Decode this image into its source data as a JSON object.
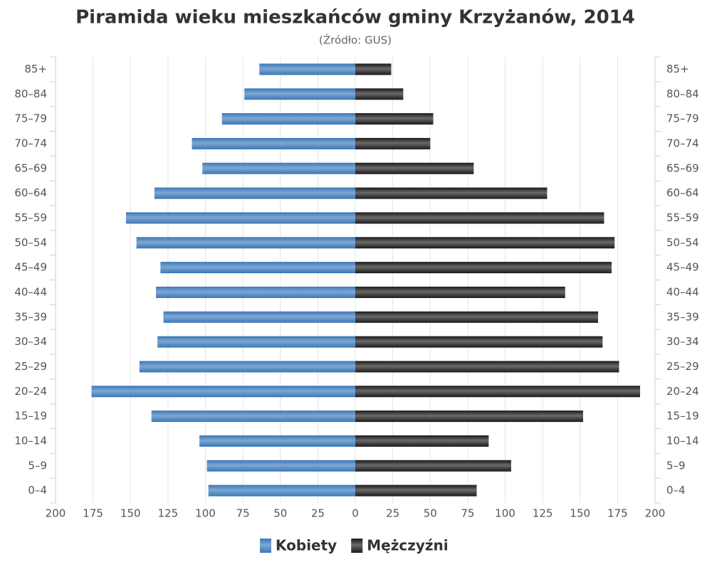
{
  "chart_data": {
    "type": "pyramid",
    "title": "Piramida wieku mieszkańców gminy Krzyżanów, 2014",
    "subtitle": "(Źródło: GUS)",
    "categories": [
      "85+",
      "80–84",
      "75–79",
      "70–74",
      "65–69",
      "60–64",
      "55–59",
      "50–54",
      "45–49",
      "40–44",
      "35–39",
      "30–34",
      "25–29",
      "20–24",
      "15–19",
      "10–14",
      "5–9",
      "0–4"
    ],
    "series": [
      {
        "name": "Kobiety",
        "color": "#3a78b8",
        "side": "left",
        "values": [
          64,
          74,
          89,
          109,
          102,
          134,
          153,
          146,
          130,
          133,
          128,
          132,
          144,
          176,
          136,
          104,
          99,
          98
        ]
      },
      {
        "name": "Mężczyźni",
        "color": "#1a1a1a",
        "side": "right",
        "values": [
          24,
          32,
          52,
          50,
          79,
          128,
          166,
          173,
          171,
          140,
          162,
          165,
          176,
          190,
          152,
          89,
          104,
          81
        ]
      }
    ],
    "xlim": [
      0,
      200
    ],
    "xticks": [
      0,
      25,
      50,
      75,
      100,
      125,
      150,
      175,
      200
    ],
    "grid": true
  }
}
